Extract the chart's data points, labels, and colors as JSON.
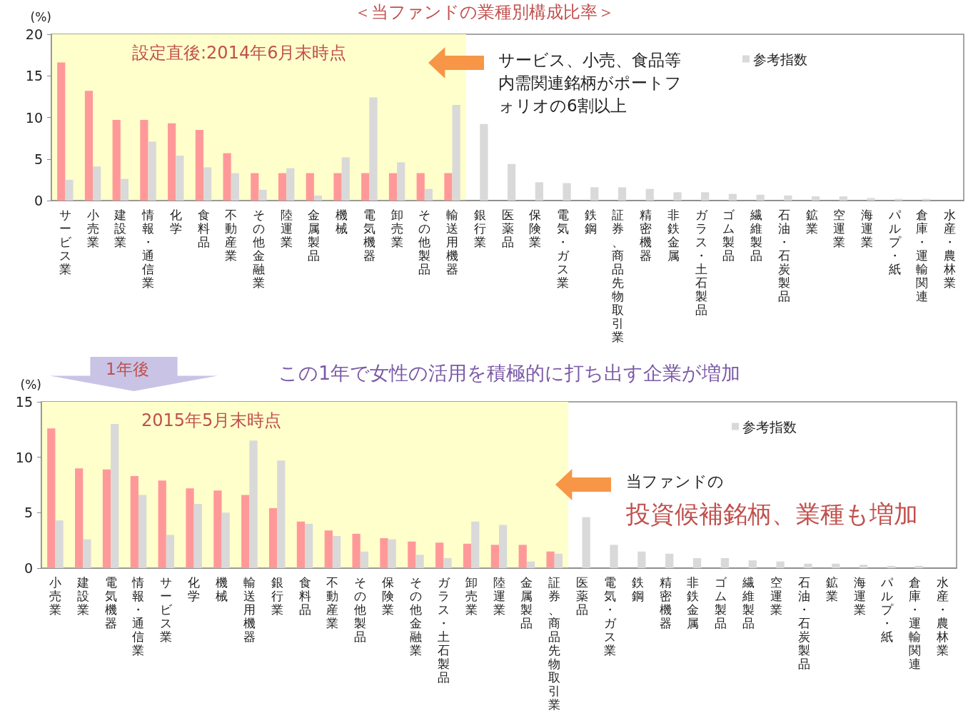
{
  "chart_data": [
    {
      "type": "bar",
      "title": "＜当ファンドの業種別構成比率＞",
      "ylabel": "(%)",
      "categories": [
        "サービス業",
        "小売業",
        "建設業",
        "情報・通信業",
        "化学",
        "食料品",
        "不動産業",
        "その他金融業",
        "陸運業",
        "金属製品",
        "機械",
        "電気機器",
        "卸売業",
        "その他製品",
        "輸送用機器",
        "銀行業",
        "医薬品",
        "保険業",
        "電気・ガス業",
        "鉄鋼",
        "証券、商品先物取引業",
        "精密機器",
        "非鉄金属",
        "ガラス・土石製品",
        "ゴム製品",
        "繊維製品",
        "石油・石炭製品",
        "鉱業",
        "空運業",
        "海運業",
        "パルプ・紙",
        "倉庫・運輸関連",
        "水産・農林業"
      ],
      "series": [
        {
          "color": "#ff9999",
          "values": [
            16.6,
            13.2,
            9.7,
            9.7,
            9.3,
            8.5,
            5.7,
            3.3,
            3.3,
            3.3,
            3.3,
            3.3,
            3.3,
            3.3,
            3.3,
            null,
            null,
            null,
            null,
            null,
            null,
            null,
            null,
            null,
            null,
            null,
            null,
            null,
            null,
            null,
            null,
            null,
            null
          ]
        },
        {
          "name": "参考指数",
          "color": "#d9d9d9",
          "values": [
            2.5,
            4.1,
            2.6,
            7.1,
            5.4,
            4.0,
            3.3,
            1.3,
            3.9,
            0.6,
            5.2,
            12.4,
            4.6,
            1.4,
            11.5,
            9.2,
            4.4,
            2.2,
            2.1,
            1.6,
            1.6,
            1.4,
            1.0,
            1.0,
            0.8,
            0.7,
            0.6,
            0.5,
            0.5,
            0.3,
            0.2,
            0.2,
            0
          ]
        }
      ],
      "ylim": [
        0,
        20
      ],
      "yticks": [
        0,
        5,
        10,
        15,
        20
      ],
      "grid": false,
      "legend": "top right",
      "bands": [
        {
          "axis": "x",
          "from": "サービス業",
          "to": "輸送用機器",
          "label": "設定直後:2014年6月末時点",
          "color": "#ffffcc"
        }
      ],
      "annotations": [
        "サービス、小売、食品等内需関連銘柄がポートフォリオの6割以上"
      ]
    },
    {
      "type": "bar",
      "ylabel": "(%)",
      "categories": [
        "小売業",
        "建設業",
        "電気機器",
        "情報・通信業",
        "サービス業",
        "化学",
        "機械",
        "輸送用機器",
        "銀行業",
        "食料品",
        "不動産業",
        "その他製品",
        "保険業",
        "その他金融業",
        "ガラス・土石製品",
        "卸売業",
        "陸運業",
        "金属製品",
        "証券、商品先物取引業",
        "医薬品",
        "電気・ガス業",
        "鉄鋼",
        "精密機器",
        "非鉄金属",
        "ゴム製品",
        "繊維製品",
        "空運業",
        "石油・石炭製品",
        "鉱業",
        "海運業",
        "パルプ・紙",
        "倉庫・運輸関連",
        "水産・農林業"
      ],
      "series": [
        {
          "color": "#ff9999",
          "values": [
            12.6,
            9.0,
            8.9,
            8.3,
            7.9,
            7.2,
            7.0,
            6.6,
            5.4,
            4.2,
            3.4,
            3.1,
            2.7,
            2.4,
            2.3,
            2.2,
            2.1,
            2.1,
            1.5,
            null,
            null,
            null,
            null,
            null,
            null,
            null,
            null,
            null,
            null,
            null,
            null,
            null,
            null
          ]
        },
        {
          "name": "参考指数",
          "color": "#d9d9d9",
          "values": [
            4.3,
            2.6,
            13.0,
            6.6,
            3.0,
            5.8,
            5.0,
            11.5,
            9.7,
            4.0,
            2.9,
            1.5,
            2.6,
            1.2,
            0.9,
            4.2,
            3.9,
            0.6,
            1.3,
            4.6,
            2.1,
            1.5,
            1.3,
            0.9,
            0.9,
            0.7,
            0.6,
            0.4,
            0.4,
            0.3,
            0.2,
            0.2,
            0
          ]
        }
      ],
      "ylim": [
        0,
        15
      ],
      "yticks": [
        0,
        5,
        10,
        15
      ],
      "grid": false,
      "legend": "top right",
      "bands": [
        {
          "axis": "x",
          "from": "小売業",
          "to": "証券、商品先物取引業",
          "label": "2015年5月末時点",
          "color": "#ffffcc"
        }
      ],
      "annotations": [
        "1年後",
        "この1年で女性の活用を積極的に打ち出す企業が増加",
        "当ファンドの",
        "投資候補銘柄、業種も増加"
      ]
    }
  ]
}
